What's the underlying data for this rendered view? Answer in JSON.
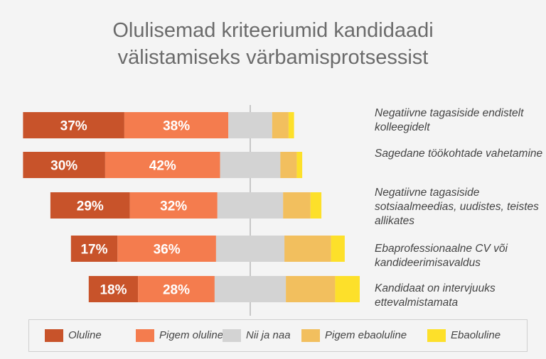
{
  "chart_data": {
    "type": "bar",
    "orientation": "horizontal",
    "stacked": "diverging",
    "title": "Olulisemad kriteeriumid kandidaadi välistamiseks värbamisprotsessist",
    "categories": [
      "Negatiivne tagasiside endistelt kolleegidelt",
      "Sagedane töökohtade vahetamine",
      "Negatiivne tagasiside sotsiaalmeedias, uudistes, teistes allikates",
      "Ebaprofessionaalne CV või kandideerimisavaldus",
      "Kandidaat on intervjuuks ettevalmistamata"
    ],
    "series": [
      {
        "name": "Oluline",
        "color": "#c8532a",
        "values": [
          37,
          30,
          29,
          17,
          18
        ]
      },
      {
        "name": "Pigem oluline",
        "color": "#f47c4e",
        "values": [
          38,
          42,
          32,
          36,
          28
        ]
      },
      {
        "name": "Nii ja naa",
        "color": "#d3d3d3",
        "values": [
          16,
          22,
          24,
          25,
          26
        ]
      },
      {
        "name": "Pigem ebaoluline",
        "color": "#f2bf5e",
        "values": [
          6,
          6,
          10,
          17,
          18
        ]
      },
      {
        "name": "Ebaoluline",
        "color": "#fde02a",
        "values": [
          2,
          2,
          4,
          5,
          9
        ]
      }
    ],
    "data_labels": [
      [
        "37%",
        "38%"
      ],
      [
        "30%",
        "42%"
      ],
      [
        "29%",
        "32%"
      ],
      [
        "17%",
        "36%"
      ],
      [
        "18%",
        "28%"
      ]
    ],
    "legend_position": "bottom",
    "grid": false
  },
  "title": "Olulisemad kriteeriumid kandidaadi välistamiseks värbamisprotsessist",
  "row_labels": [
    "Negatiivne tagasiside endistelt kolleegidelt",
    "Sagedane töökohtade vahetamine",
    "Negatiivne tagasiside sotsiaalmeedias, uudistes, teistes allikates",
    "Ebaprofessionaalne CV või kandideerimisavaldus",
    "Kandidaat on intervjuuks ettevalmistamata"
  ],
  "legend": [
    {
      "name": "Oluline",
      "color": "#c8532a"
    },
    {
      "name": "Pigem oluline",
      "color": "#f47c4e"
    },
    {
      "name": "Nii ja naa",
      "color": "#d3d3d3"
    },
    {
      "name": "Pigem ebaoluline",
      "color": "#f2bf5e"
    },
    {
      "name": "Ebaoluline",
      "color": "#fde02a"
    }
  ]
}
